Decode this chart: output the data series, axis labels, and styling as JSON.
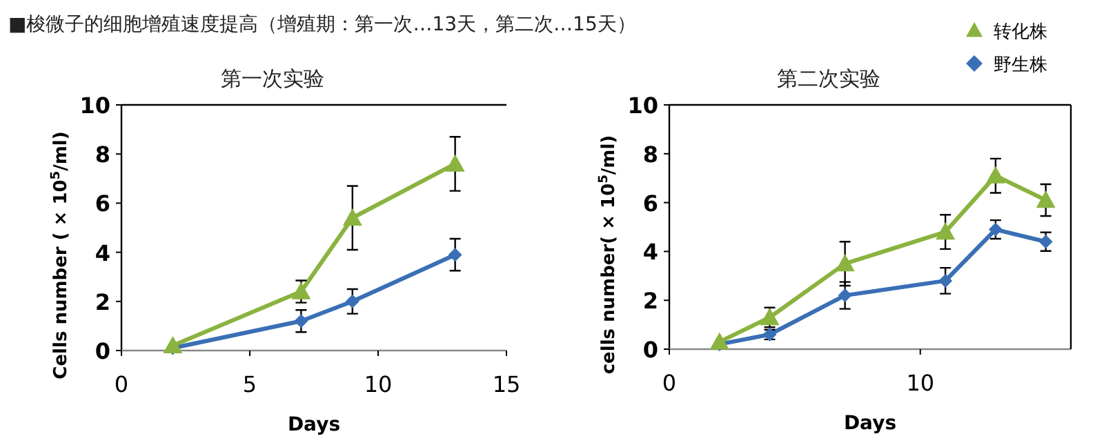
{
  "chart_data": [
    {
      "type": "line",
      "title": "第一次实验",
      "annotations": [
        "■梭微子的细胞增殖速度提高（增殖期：第一次…13天，第二次…15天）"
      ],
      "xlabel": "Days",
      "ylabel": "Cells number ( × 10$^{5}$/ml)",
      "xlim": [
        0,
        15
      ],
      "xticks": [
        0,
        5,
        10,
        15
      ],
      "ylim": [
        0,
        10
      ],
      "yticks": [
        0,
        2,
        4,
        6,
        8,
        10
      ],
      "grid": false,
      "legend": false,
      "series": [
        {
          "color": "#8ab33f",
          "marker": "triangle",
          "x": [
            2,
            7,
            9,
            13
          ],
          "values": [
            0.2,
            2.4,
            5.4,
            7.6
          ],
          "errors": [
            null,
            0.45,
            1.3,
            1.1
          ]
        },
        {
          "color": "#3a6fb5",
          "marker": "diamond",
          "x": [
            2,
            7,
            9,
            13
          ],
          "values": [
            0.1,
            1.2,
            2.0,
            3.9
          ],
          "errors": [
            null,
            0.45,
            0.5,
            0.65
          ]
        }
      ]
    },
    {
      "type": "line",
      "title": "第二次实验",
      "xlabel": "Days",
      "ylabel": "cells number( × 10$^{5}$/ml)",
      "xlim": [
        0,
        16
      ],
      "xticks": [
        0,
        10
      ],
      "ylim": [
        0,
        10
      ],
      "yticks": [
        0,
        2,
        4,
        6,
        8,
        10
      ],
      "grid": false,
      "legend": "top right",
      "series": [
        {
          "name": "转化株",
          "color": "#8ab33f",
          "marker": "triangle",
          "x": [
            2,
            4,
            7,
            11,
            13,
            15
          ],
          "values": [
            0.3,
            1.3,
            3.5,
            4.8,
            7.1,
            6.1
          ],
          "errors": [
            null,
            0.4,
            0.9,
            0.7,
            0.7,
            0.65
          ]
        },
        {
          "name": "野生株",
          "color": "#3a6fb5",
          "marker": "diamond",
          "x": [
            2,
            4,
            7,
            11,
            13,
            15
          ],
          "values": [
            0.2,
            0.6,
            2.2,
            2.8,
            4.9,
            4.4
          ],
          "errors": [
            null,
            0.2,
            0.55,
            0.53,
            0.38,
            0.38
          ]
        }
      ]
    }
  ]
}
